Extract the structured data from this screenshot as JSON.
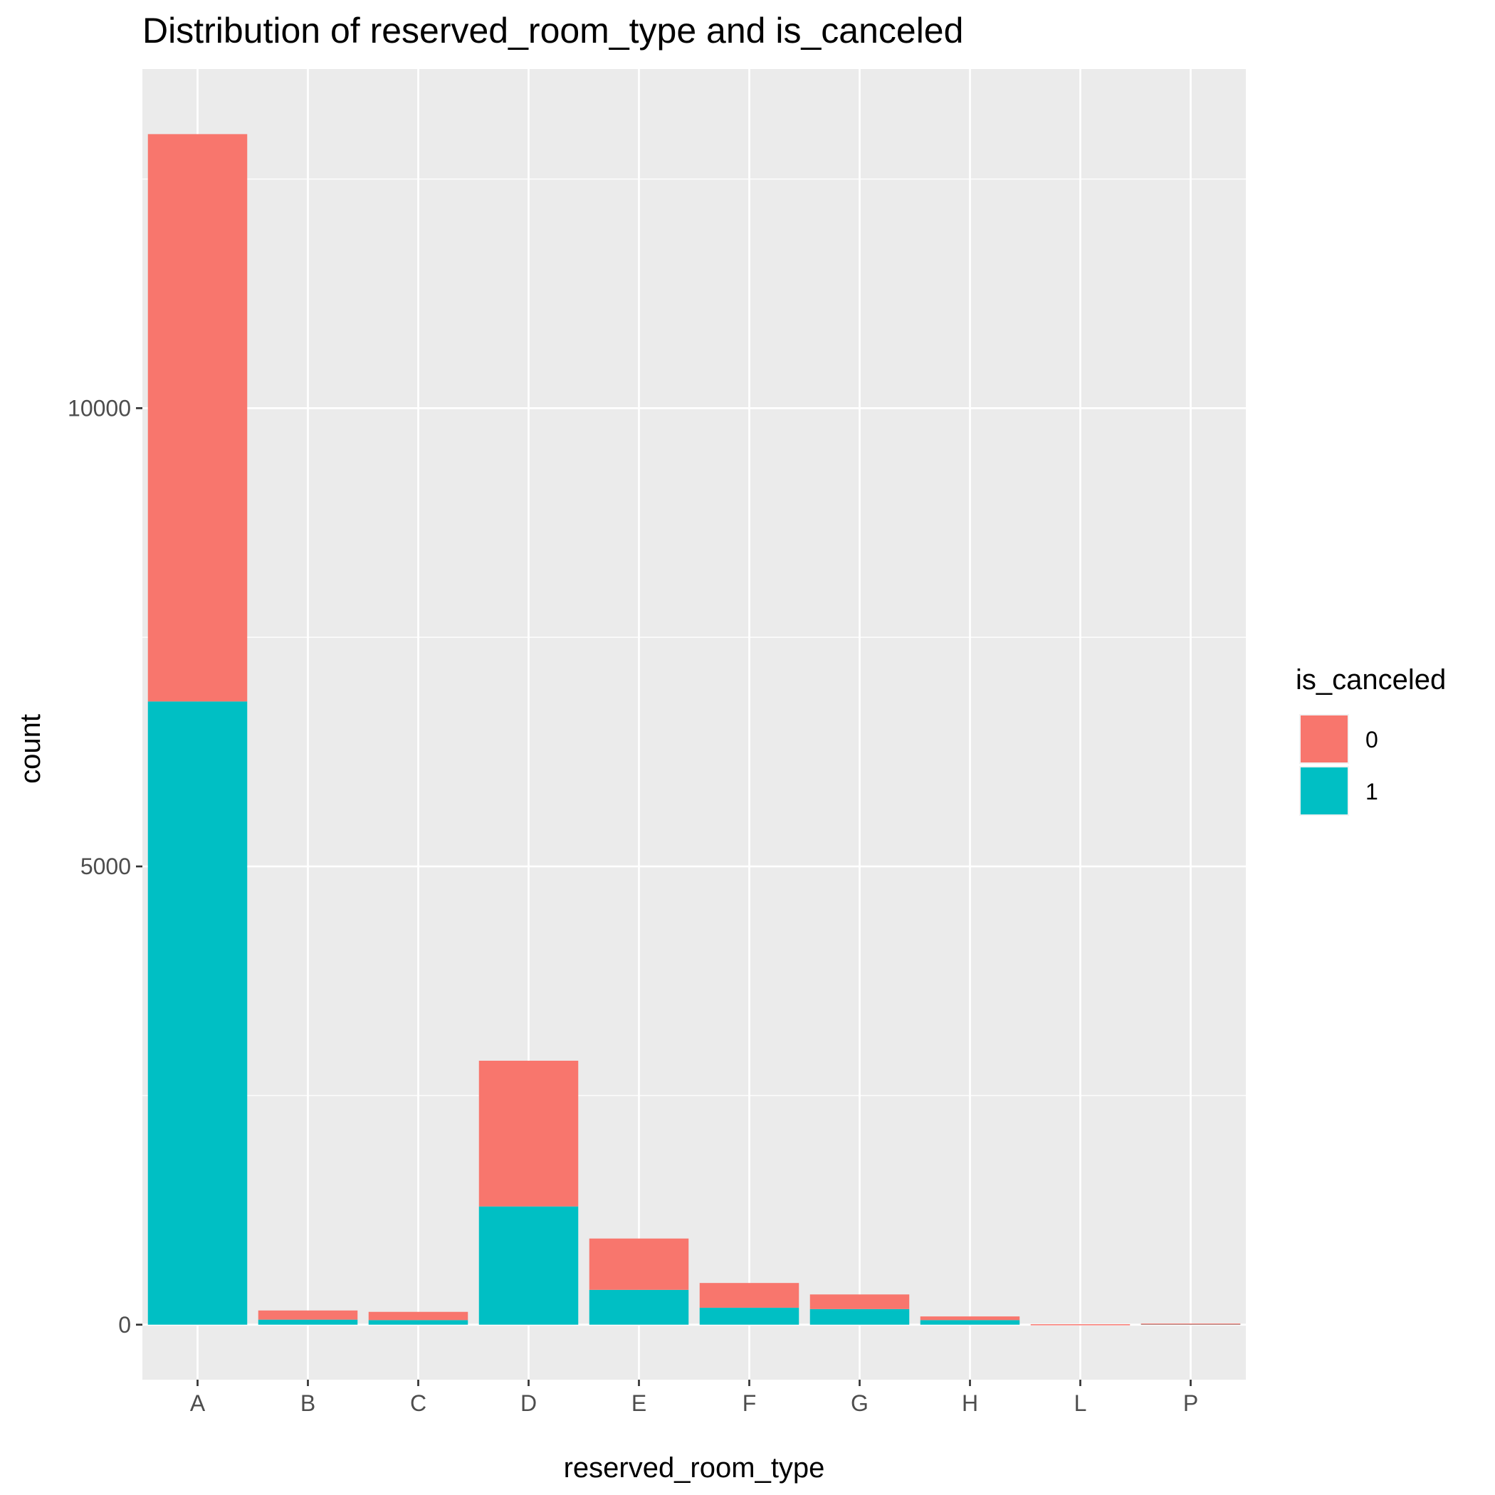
{
  "chart_data": {
    "type": "bar",
    "stacked": true,
    "title": "Distribution of reserved_room_type and is_canceled",
    "xlabel": "reserved_room_type",
    "ylabel": "count",
    "categories": [
      "A",
      "B",
      "C",
      "D",
      "E",
      "F",
      "G",
      "H",
      "L",
      "P"
    ],
    "series": [
      {
        "name": "0",
        "color": "#F8766D",
        "values": [
          6190,
          100,
          90,
          1590,
          560,
          270,
          160,
          40,
          5,
          2
        ]
      },
      {
        "name": "1",
        "color": "#00BFC4",
        "values": [
          6800,
          55,
          50,
          1290,
          380,
          185,
          170,
          50,
          0,
          10
        ]
      }
    ],
    "ylim": [
      -600,
      13700
    ],
    "yticks": [
      0,
      5000,
      10000
    ],
    "ytick_labels": [
      "0",
      "5000",
      "10000"
    ],
    "legend": {
      "title": "is_canceled",
      "position": "right"
    },
    "grid": true,
    "panel_background": "#EBEBEB"
  }
}
